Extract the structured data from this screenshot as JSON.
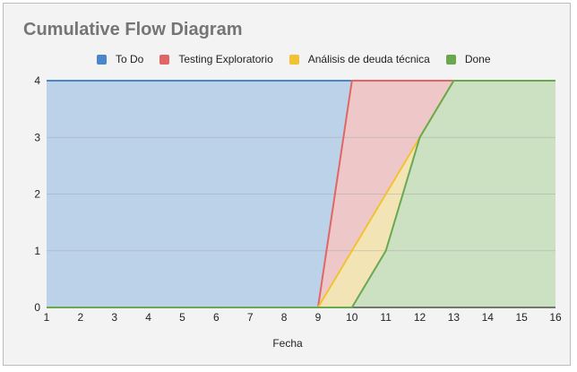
{
  "chart_data": {
    "type": "area",
    "stacked": false,
    "title": "Cumulative Flow Diagram",
    "xlabel": "Fecha",
    "ylabel": "",
    "x": [
      1,
      2,
      3,
      4,
      5,
      6,
      7,
      8,
      9,
      10,
      11,
      12,
      13,
      14,
      15,
      16
    ],
    "xlim": [
      1,
      16
    ],
    "ylim": [
      0,
      4
    ],
    "yticks": [
      0,
      1,
      2,
      3,
      4
    ],
    "grid": true,
    "legend_position": "top",
    "series": [
      {
        "name": "To Do",
        "color": "#4a86c8",
        "fill": "#bcd2e8",
        "values": [
          4,
          4,
          4,
          4,
          4,
          4,
          4,
          4,
          4,
          4,
          4,
          4,
          4,
          4,
          4,
          4
        ]
      },
      {
        "name": "Testing Exploratorio",
        "color": "#e06666",
        "fill": "#eec8c8",
        "values": [
          0,
          0,
          0,
          0,
          0,
          0,
          0,
          0,
          0,
          4,
          4,
          4,
          4,
          4,
          4,
          4
        ]
      },
      {
        "name": "Análisis de deuda técnica",
        "color": "#f1c232",
        "fill": "#f3e4b6",
        "values": [
          0,
          0,
          0,
          0,
          0,
          0,
          0,
          0,
          0,
          1,
          2,
          3,
          4,
          4,
          4,
          4
        ]
      },
      {
        "name": "Done",
        "color": "#6aa84f",
        "fill": "#cce0c2",
        "values": [
          0,
          0,
          0,
          0,
          0,
          0,
          0,
          0,
          0,
          0,
          1,
          3,
          4,
          4,
          4,
          4
        ]
      }
    ]
  }
}
